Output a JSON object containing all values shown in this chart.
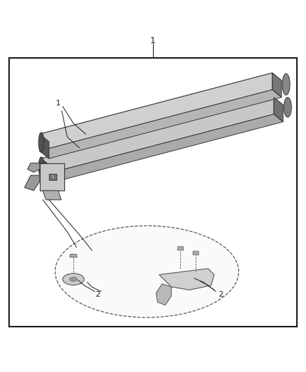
{
  "background_color": "#ffffff",
  "border_color": "#1a1a1a",
  "border_lw": 1.5,
  "fig_width": 4.38,
  "fig_height": 5.33,
  "label1_text": "1",
  "label2_text": "2",
  "label_fontsize": 8,
  "title_fontsize": 9,
  "line_color": "#1a1a1a",
  "light_gray": "#e8e8e8",
  "mid_gray": "#b8b8b8",
  "dark_gray": "#707070",
  "very_dark": "#404040",
  "edge_color": "#333333",
  "rail_top_color": "#e0e0e0",
  "rail_side_color": "#c0c0c0",
  "rail_bottom_color": "#a8a8a8",
  "clamp_color": "#d0d0d0",
  "endcap_color": "#585858"
}
